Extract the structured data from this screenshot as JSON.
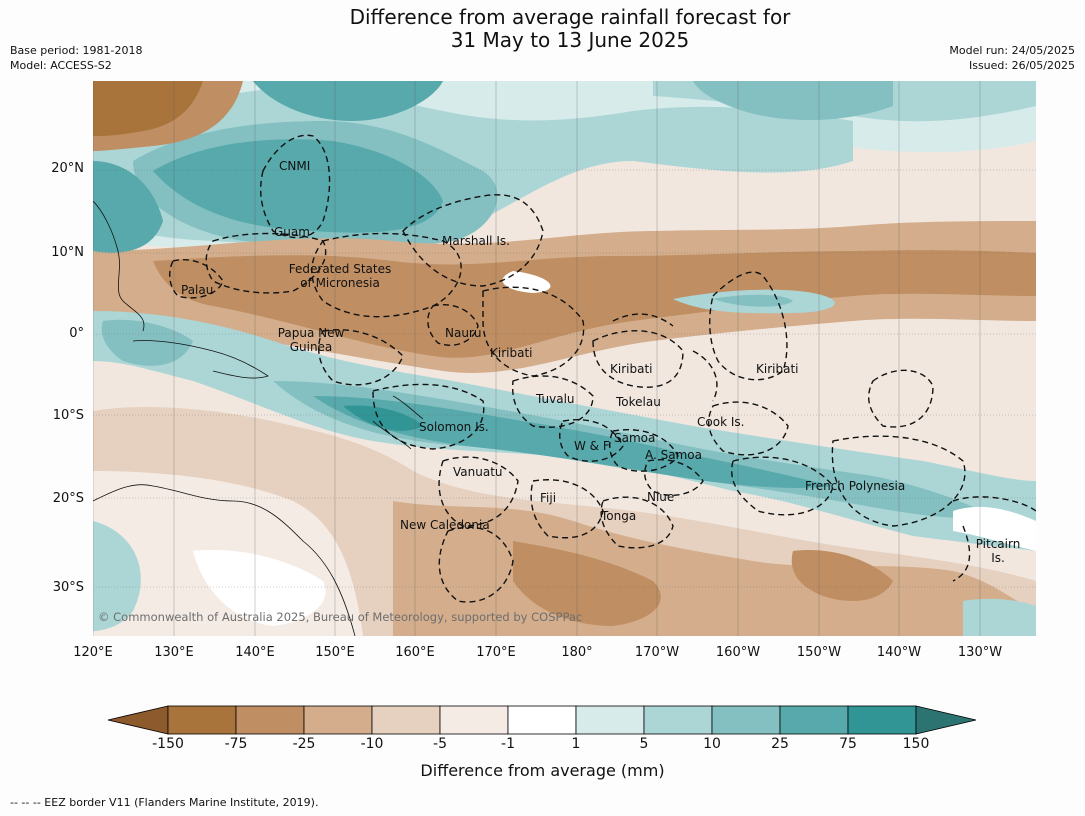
{
  "title_line1": "Difference from average rainfall forecast for",
  "title_line2": "31 May to 13 June 2025",
  "meta": {
    "base_period": "Base period: 1981-2018",
    "model": "Model: ACCESS-S2",
    "model_run": "Model run: 24/05/2025",
    "issued": "Issued: 26/05/2025"
  },
  "lat_labels": [
    "20°N",
    "10°N",
    "0°",
    "10°S",
    "20°S",
    "30°S"
  ],
  "lon_labels": [
    "120°E",
    "130°E",
    "140°E",
    "150°E",
    "160°E",
    "170°E",
    "180°",
    "170°W",
    "160°W",
    "150°W",
    "140°W",
    "130°W"
  ],
  "places": {
    "cnmi": "CNMI",
    "guam": "Guam",
    "marshall": "Marshall Is.",
    "fsm1": "Federated States",
    "fsm2": "of Micronesia",
    "palau": "Palau",
    "png1": "Papua New",
    "png2": "Guinea",
    "nauru": "Nauru",
    "kiribati_w": "Kiribati",
    "kiribati_c": "Kiribati",
    "kiribati_e": "Kiribati",
    "tuvalu": "Tuvalu",
    "tokelau": "Tokelau",
    "cook": "Cook Is.",
    "solomon": "Solomon Is.",
    "wf": "W & F",
    "samoa": "Samoa",
    "asamoa": "A. Samoa",
    "vanuatu": "Vanuatu",
    "fiji": "Fiji",
    "niue": "Niue",
    "tonga": "Tonga",
    "frenchpoly": "French Polynesia",
    "newcal": "New Caledonia",
    "pitcairn1": "Pitcairn",
    "pitcairn2": "Is."
  },
  "copyright": "© Commonwealth of Australia 2025, Bureau of Meteorology, supported by COSPPac",
  "colorbar": {
    "ticks": [
      "-150",
      "-75",
      "-25",
      "-10",
      "-5",
      "-1",
      "1",
      "5",
      "10",
      "25",
      "75",
      "150"
    ],
    "colors": [
      "#8c5a2c",
      "#a9733c",
      "#bf8f63",
      "#d4ae8c",
      "#e6d0bf",
      "#f4ebe5",
      "#ffffff",
      "#d7ebea",
      "#acd6d6",
      "#84c0c1",
      "#57a9ab",
      "#309594",
      "#2b7472"
    ],
    "label": "Difference from average (mm)"
  },
  "footer": "--  --  -- EEZ border V11 (Flanders Marine Institute, 2019)."
}
